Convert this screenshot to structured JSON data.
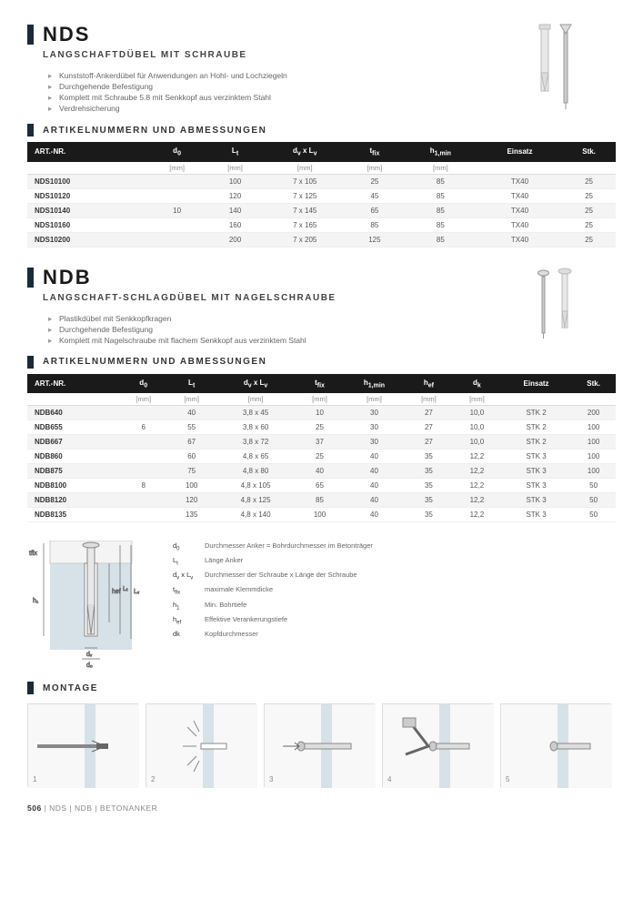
{
  "nds": {
    "title": "NDS",
    "subtitle": "LANGSCHAFTDÜBEL MIT SCHRAUBE",
    "bullets": [
      "Kunststoff-Ankerdübel für Anwendungen an Hohl- und Lochziegeln",
      "Durchgehende Befestigung",
      "Komplett mit Schraube 5.8 mit Senkkopf aus verzinktem Stahl",
      "Verdrehsicherung"
    ],
    "tableTitle": "ARTIKELNUMMERN UND ABMESSUNGEN",
    "headers": [
      "ART.-NR.",
      "d₀",
      "Lₜ",
      "dᵥ x Lᵥ",
      "tfix",
      "h₁,min",
      "Einsatz",
      "Stk."
    ],
    "units": [
      "",
      "[mm]",
      "[mm]",
      "[mm]",
      "[mm]",
      "[mm]",
      "",
      ""
    ],
    "rows": [
      [
        "NDS10100",
        "",
        "100",
        "7 x 105",
        "25",
        "85",
        "TX40",
        "25"
      ],
      [
        "NDS10120",
        "",
        "120",
        "7 x 125",
        "45",
        "85",
        "TX40",
        "25"
      ],
      [
        "NDS10140",
        "10",
        "140",
        "7 x 145",
        "65",
        "85",
        "TX40",
        "25"
      ],
      [
        "NDS10160",
        "",
        "160",
        "7 x 165",
        "85",
        "85",
        "TX40",
        "25"
      ],
      [
        "NDS10200",
        "",
        "200",
        "7 x 205",
        "125",
        "85",
        "TX40",
        "25"
      ]
    ],
    "d0merged": "10"
  },
  "ndb": {
    "title": "NDB",
    "subtitle": "LANGSCHAFT-SCHLAGDÜBEL MIT NAGELSCHRAUBE",
    "bullets": [
      "Plastikdübel mit Senkkopfkragen",
      "Durchgehende Befestigung",
      "Komplett mit Nagelschraube mit flachem Senkkopf aus verzinktem Stahl"
    ],
    "tableTitle": "ARTIKELNUMMERN UND ABMESSUNGEN",
    "headers": [
      "ART.-NR.",
      "d₀",
      "Lₜ",
      "dᵥ x Lᵥ",
      "tfix",
      "h₁,min",
      "hef",
      "dk",
      "Einsatz",
      "Stk."
    ],
    "units": [
      "",
      "[mm]",
      "[mm]",
      "[mm]",
      "[mm]",
      "[mm]",
      "[mm]",
      "[mm]",
      "",
      ""
    ],
    "rows": [
      [
        "NDB640",
        "",
        "40",
        "3,8 x 45",
        "10",
        "30",
        "27",
        "10,0",
        "STK 2",
        "200"
      ],
      [
        "NDB655",
        "6",
        "55",
        "3,8 x 60",
        "25",
        "30",
        "27",
        "10,0",
        "STK 2",
        "100"
      ],
      [
        "NDB667",
        "",
        "67",
        "3,8 x 72",
        "37",
        "30",
        "27",
        "10,0",
        "STK 2",
        "100"
      ],
      [
        "NDB860",
        "",
        "60",
        "4,8 x 65",
        "25",
        "40",
        "35",
        "12,2",
        "STK 3",
        "100"
      ],
      [
        "NDB875",
        "",
        "75",
        "4,8 x 80",
        "40",
        "40",
        "35",
        "12,2",
        "STK 3",
        "100"
      ],
      [
        "NDB8100",
        "8",
        "100",
        "4,8 x 105",
        "65",
        "40",
        "35",
        "12,2",
        "STK 3",
        "50"
      ],
      [
        "NDB8120",
        "",
        "120",
        "4,8 x 125",
        "85",
        "40",
        "35",
        "12,2",
        "STK 3",
        "50"
      ],
      [
        "NDB8135",
        "",
        "135",
        "4,8 x 140",
        "100",
        "40",
        "35",
        "12,2",
        "STK 3",
        "50"
      ]
    ]
  },
  "legend": [
    {
      "sym": "d₀",
      "text": "Durchmesser Anker = Bohrdurchmesser im Betonträger"
    },
    {
      "sym": "Lₜ",
      "text": "Länge Anker"
    },
    {
      "sym": "dᵥ x Lᵥ",
      "text": "Durchmesser der Schraube x Länge der Schraube"
    },
    {
      "sym": "tfix",
      "text": "maximale Klemmdicke"
    },
    {
      "sym": "h₁",
      "text": "Min. Bohrtiefe"
    },
    {
      "sym": "hef",
      "text": "Effektive Verankerungstiefe"
    },
    {
      "sym": "dk",
      "text": "Kopfdurchmesser"
    }
  ],
  "montageTitle": "MONTAGE",
  "footer": {
    "page": "506",
    "path": "NDS | NDB | BETONANKER"
  },
  "diagramLabels": {
    "dk": "dk",
    "tfix": "tfix",
    "h1": "h₁",
    "hef": "hef",
    "Lt": "Lₜ",
    "Lv": "Lᵥ",
    "dv": "dᵥ",
    "d0": "d₀"
  },
  "colors": {
    "headerBg": "#1a1a1a",
    "barColor": "#1a2a3a",
    "wallColor": "#d6e2e8"
  }
}
